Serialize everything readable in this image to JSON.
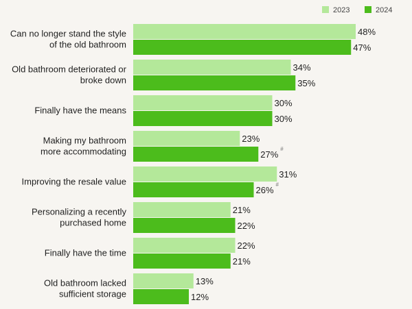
{
  "chart_data": {
    "type": "bar",
    "orientation": "horizontal",
    "legend_position": "top-right",
    "grid": false,
    "xlim": [
      0,
      50
    ],
    "title": "",
    "xlabel": "",
    "ylabel": "",
    "categories": [
      [
        "Can no longer stand the style",
        "of the old bathroom"
      ],
      [
        "Old bathroom deteriorated or",
        "broke down"
      ],
      [
        "Finally have the means"
      ],
      [
        "Making my bathroom",
        "more accommodating"
      ],
      [
        "Improving the resale value"
      ],
      [
        "Personalizing a recently",
        "purchased home"
      ],
      [
        "Finally have the time"
      ],
      [
        "Old bathroom lacked",
        "sufficient storage"
      ]
    ],
    "series": [
      {
        "name": "2023",
        "color": "#b4e89a",
        "values": [
          48,
          34,
          30,
          23,
          31,
          21,
          22,
          13
        ],
        "labels": [
          "48%",
          "34%",
          "30%",
          "23%",
          "31%",
          "21%",
          "22%",
          "13%"
        ],
        "notes": [
          "",
          "",
          "",
          "",
          "",
          "",
          "",
          ""
        ]
      },
      {
        "name": "2024",
        "color": "#4cbc1c",
        "values": [
          47,
          35,
          30,
          27,
          26,
          22,
          21,
          12
        ],
        "labels": [
          "47%",
          "35%",
          "30%",
          "27%",
          "26%",
          "22%",
          "21%",
          "12%"
        ],
        "notes": [
          "",
          "",
          "",
          "#",
          "#",
          "",
          "",
          ""
        ]
      }
    ]
  }
}
